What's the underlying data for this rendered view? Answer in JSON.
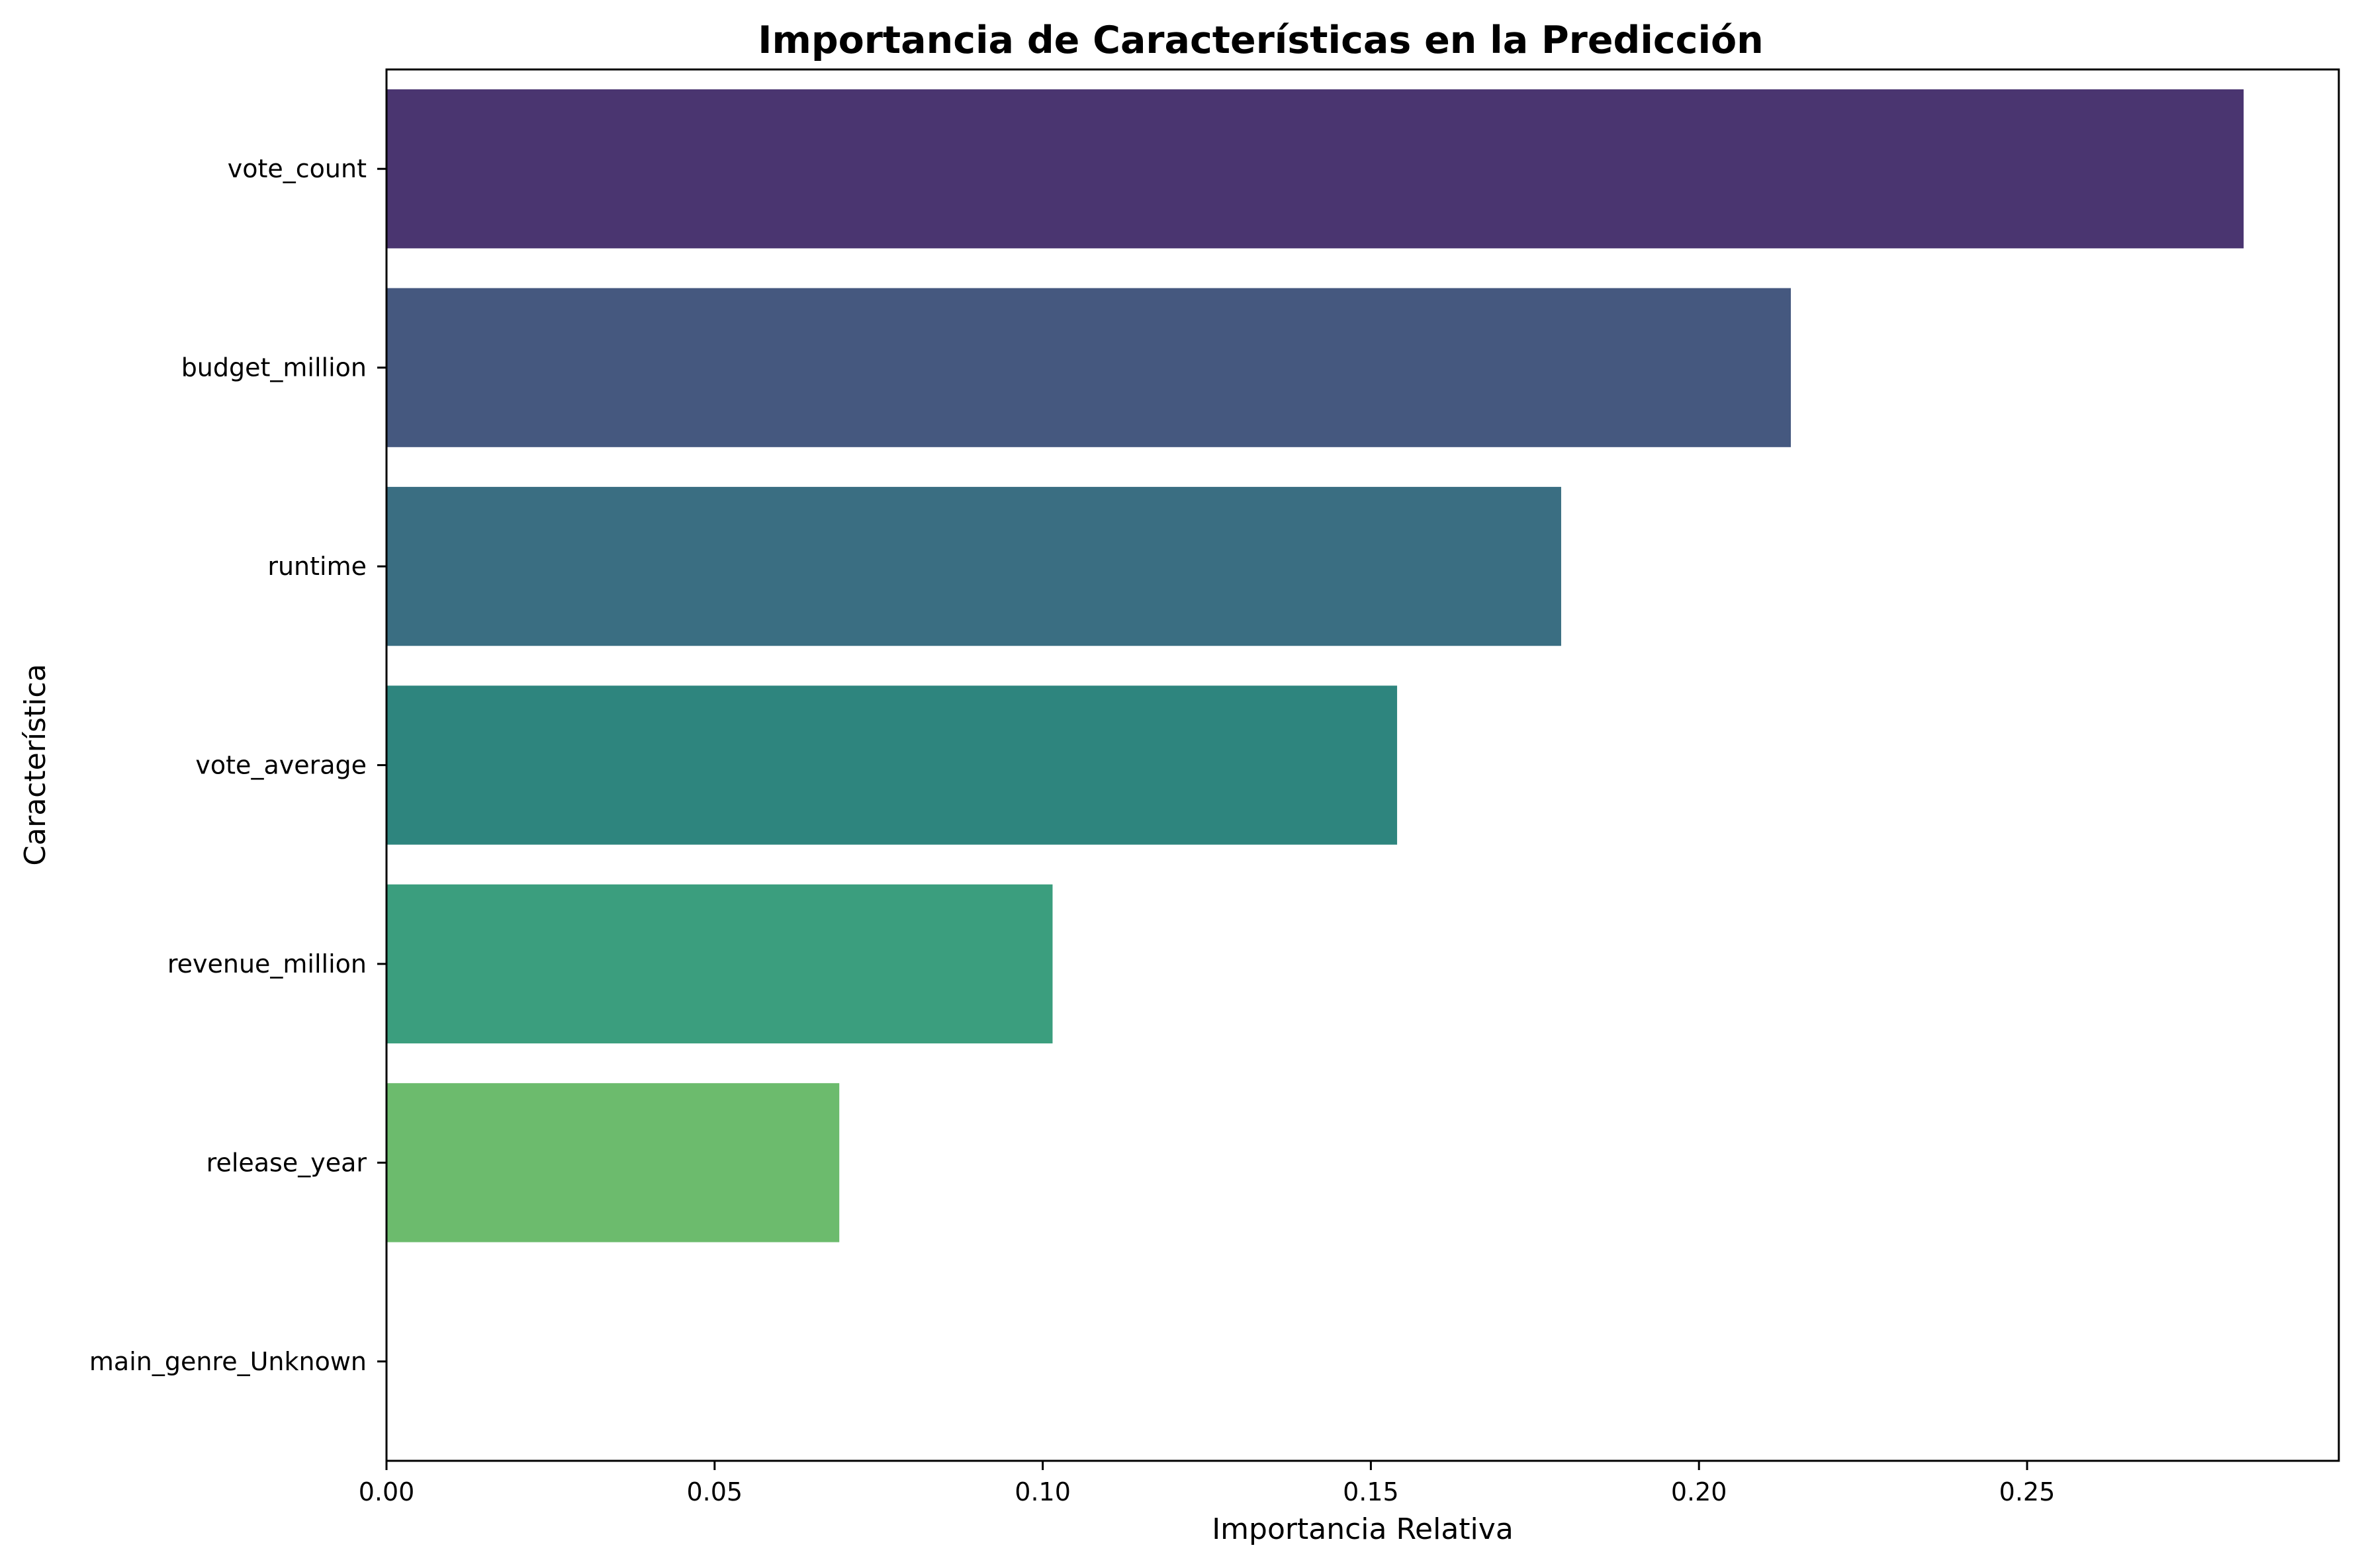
{
  "chart_data": {
    "type": "bar",
    "orientation": "horizontal",
    "title": "Importancia de Características en la Predicción",
    "xlabel": "Importancia Relativa",
    "ylabel": "Característica",
    "categories": [
      "vote_count",
      "budget_million",
      "runtime",
      "vote_average",
      "revenue_million",
      "release_year",
      "main_genre_Unknown"
    ],
    "values": [
      0.283,
      0.214,
      0.179,
      0.154,
      0.1015,
      0.069,
      0.0
    ],
    "colors": [
      "#4a3570",
      "#45587f",
      "#3a6e82",
      "#2e857e",
      "#3b9e7e",
      "#6cbb6d",
      "#b5de2b"
    ],
    "xlim": [
      0,
      0.2975
    ],
    "xticks": [
      0.0,
      0.05,
      0.1,
      0.15,
      0.2,
      0.25
    ],
    "xtick_labels": [
      "0.00",
      "0.05",
      "0.10",
      "0.15",
      "0.20",
      "0.25"
    ],
    "grid": false,
    "legend": "none"
  }
}
